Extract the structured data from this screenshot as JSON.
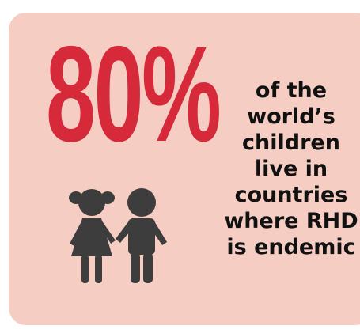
{
  "infographic": {
    "stat": "80%",
    "caption_lines": [
      "of the",
      "world’s",
      "children",
      "live in",
      "countries",
      "where RHD",
      "is endemic"
    ]
  },
  "colors": {
    "background": "#f6cdc2",
    "stat": "#d62a3b",
    "text": "#111111",
    "icon": "#3d3d3d"
  },
  "icons": {
    "children": "children-icon"
  }
}
